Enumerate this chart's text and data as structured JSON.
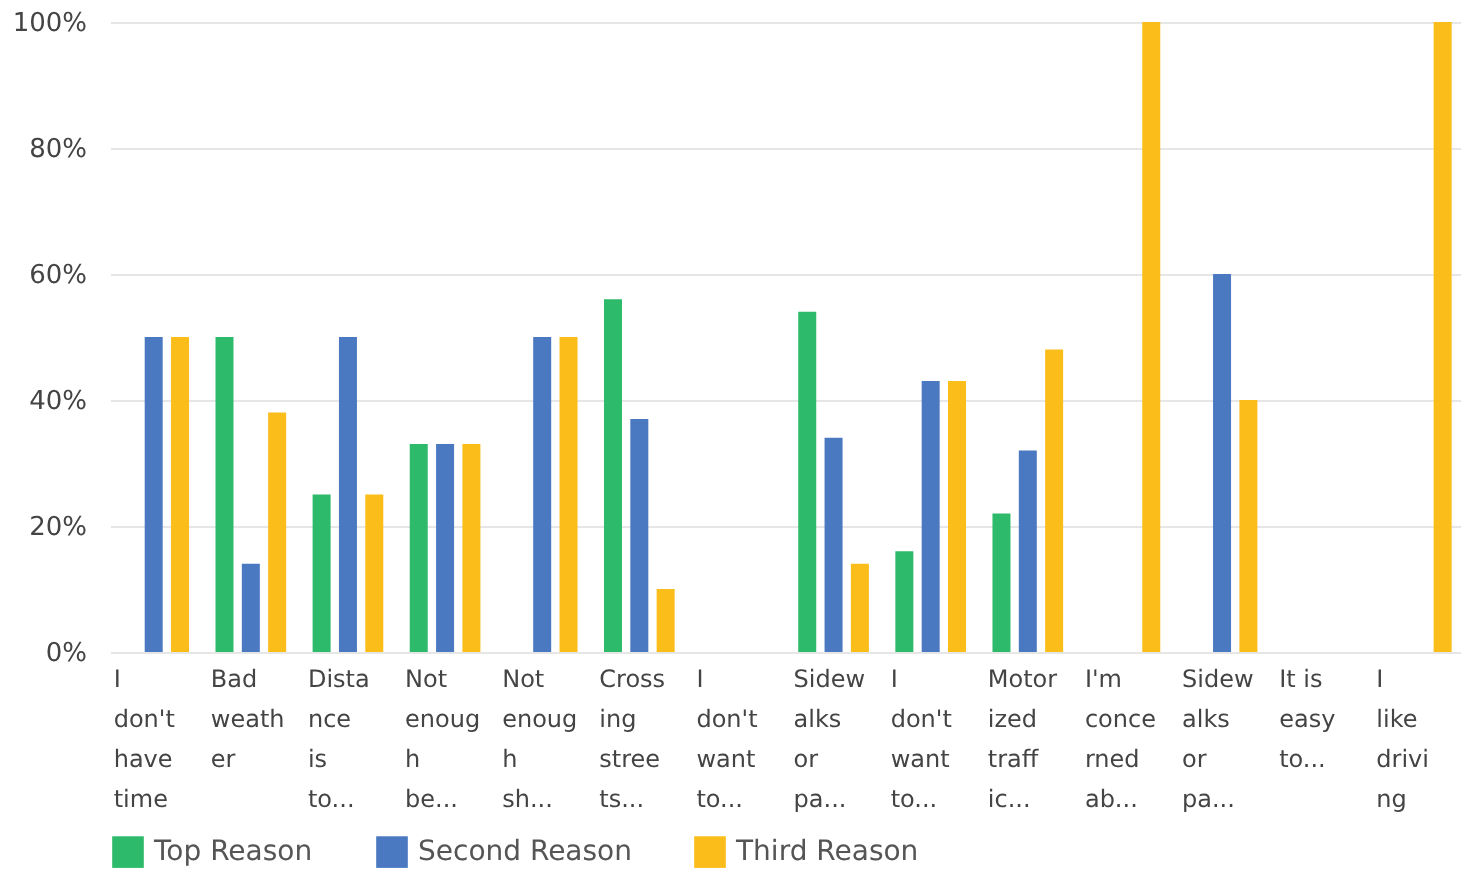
{
  "chart_data": {
    "type": "bar",
    "categories": [
      "I don't have time",
      "Bad weather",
      "Distance is to...",
      "Not enough be...",
      "Not enough sh...",
      "Crossing streets...",
      "I don't want to...",
      "Sidewalks or pa...",
      "I don't want to...",
      "Motorized traffic...",
      "I'm concerned ab...",
      "Sidewalks or pa...",
      "It is easy to...",
      "I like driving"
    ],
    "series": [
      {
        "name": "Top Reason",
        "color": "#2dba6b",
        "values": [
          0,
          50,
          25,
          33,
          0,
          56,
          0,
          54,
          16,
          22,
          0,
          0,
          0,
          0
        ]
      },
      {
        "name": "Second Reason",
        "color": "#4a79c1",
        "values": [
          50,
          14,
          50,
          33,
          50,
          37,
          0,
          34,
          43,
          32,
          0,
          60,
          0,
          0
        ]
      },
      {
        "name": "Third Reason",
        "color": "#fbbd19",
        "values": [
          50,
          38,
          25,
          33,
          50,
          10,
          0,
          14,
          43,
          48,
          100,
          40,
          0,
          100
        ]
      }
    ],
    "ylim": [
      0,
      100
    ],
    "yticks": [
      {
        "value": 0,
        "label": "0%"
      },
      {
        "value": 20,
        "label": "20%"
      },
      {
        "value": 40,
        "label": "40%"
      },
      {
        "value": 60,
        "label": "60%"
      },
      {
        "value": 80,
        "label": "80%"
      },
      {
        "value": 100,
        "label": "100%"
      }
    ],
    "grid": "y",
    "legend": "bottom left"
  }
}
